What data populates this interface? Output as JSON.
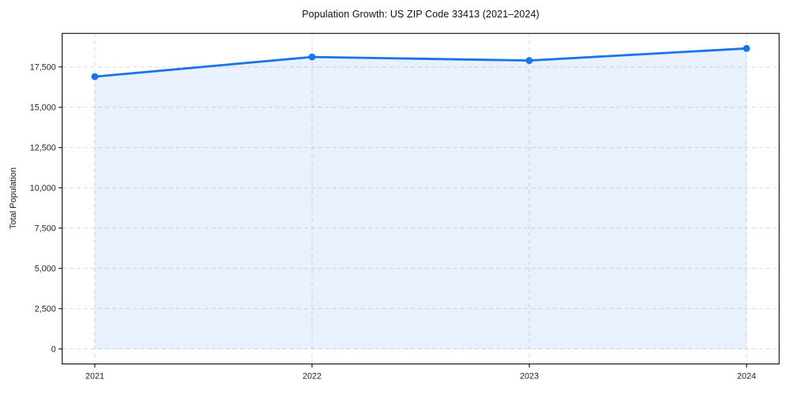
{
  "chart_data": {
    "type": "area",
    "title": "Population Growth: US ZIP Code 33413 (2021–2024)",
    "xlabel": "",
    "ylabel": "Total Population",
    "categories": [
      "2021",
      "2022",
      "2023",
      "2024"
    ],
    "series": [
      {
        "name": "Total Population",
        "values": [
          16900,
          18120,
          17900,
          18650
        ]
      }
    ],
    "yticks": [
      0,
      2500,
      5000,
      7500,
      10000,
      12500,
      15000,
      17500
    ],
    "ytick_labels": [
      "0",
      "2,500",
      "5,000",
      "7,500",
      "10,000",
      "12,500",
      "15,000",
      "17,500"
    ],
    "ylim": [
      -932,
      19582
    ],
    "xlim": [
      -0.15,
      3.15
    ],
    "grid": true,
    "grid_style": "dashed",
    "legend": "none",
    "marker": "circle",
    "colors": {
      "line": "#1a73e8",
      "marker": "#1a73e8",
      "fill": "rgba(26,115,232,0.10)",
      "grid": "#d9d9d9",
      "axis": "#1a1a1a",
      "text": "#262626",
      "background": "#ffffff"
    }
  }
}
